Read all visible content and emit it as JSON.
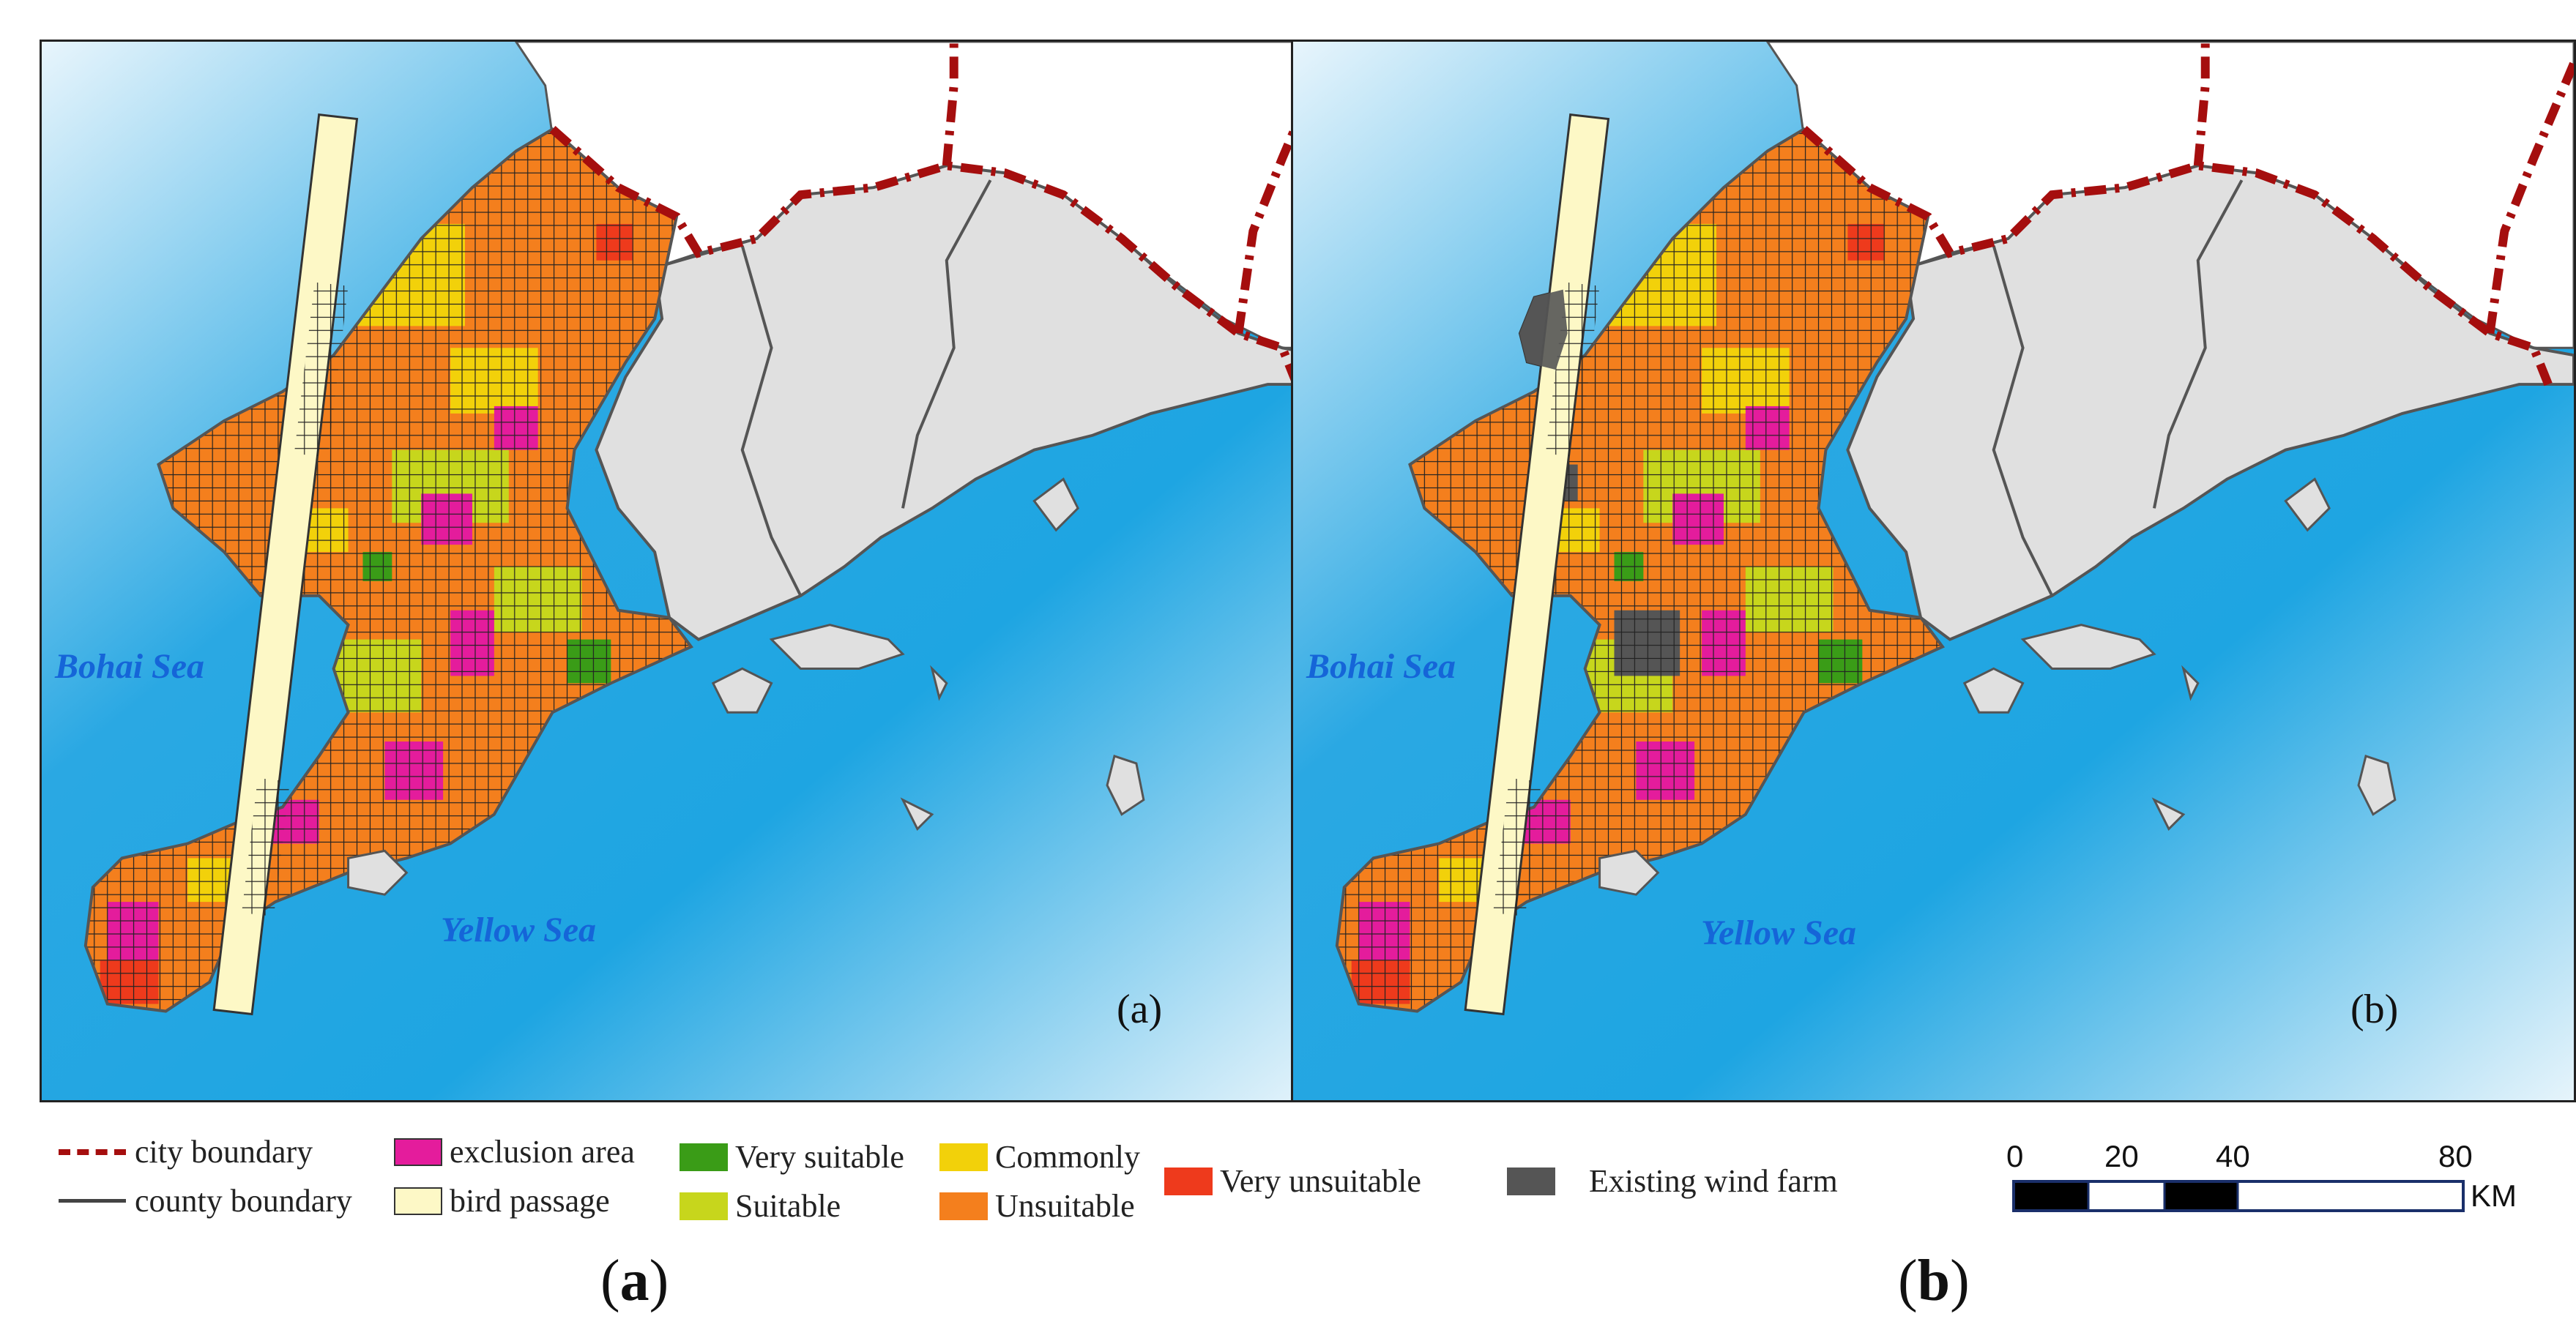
{
  "panels": [
    {
      "id": "a",
      "sea_labels": [
        "Bohai Sea",
        "Yellow Sea"
      ],
      "panel_tag": "(a)",
      "existing_wind_farm": false
    },
    {
      "id": "b",
      "sea_labels": [
        "Bohai Sea",
        "Yellow Sea"
      ],
      "panel_tag": "(b)",
      "existing_wind_farm": true
    }
  ],
  "legend": {
    "city_boundary": "city boundary",
    "county_boundary": "county boundary",
    "exclusion_area": "exclusion area",
    "bird_passage": "bird passage",
    "very_suitable": "Very suitable",
    "suitable": "Suitable",
    "commonly": "Commonly",
    "unsuitable": "Unsuitable",
    "very_unsuitable": "Very unsuitable",
    "existing_wind_farm": "Existing wind farm"
  },
  "colors": {
    "exclusion_area": "#e41c9c",
    "bird_passage": "#fdf8c6",
    "very_suitable": "#3a9c17",
    "suitable": "#c7d61c",
    "commonly": "#f2d10a",
    "unsuitable": "#f47f1d",
    "very_unsuitable": "#ee3a1c",
    "existing_wind_farm": "#555555",
    "city_boundary": "#a50e0e",
    "sea": "#1ea5e2",
    "land_other": "#e0e0e0"
  },
  "scale_bar": {
    "ticks": [
      "0",
      "20",
      "40",
      "80"
    ],
    "unit": "KM"
  },
  "captions": [
    "(a)",
    "(b)"
  ]
}
